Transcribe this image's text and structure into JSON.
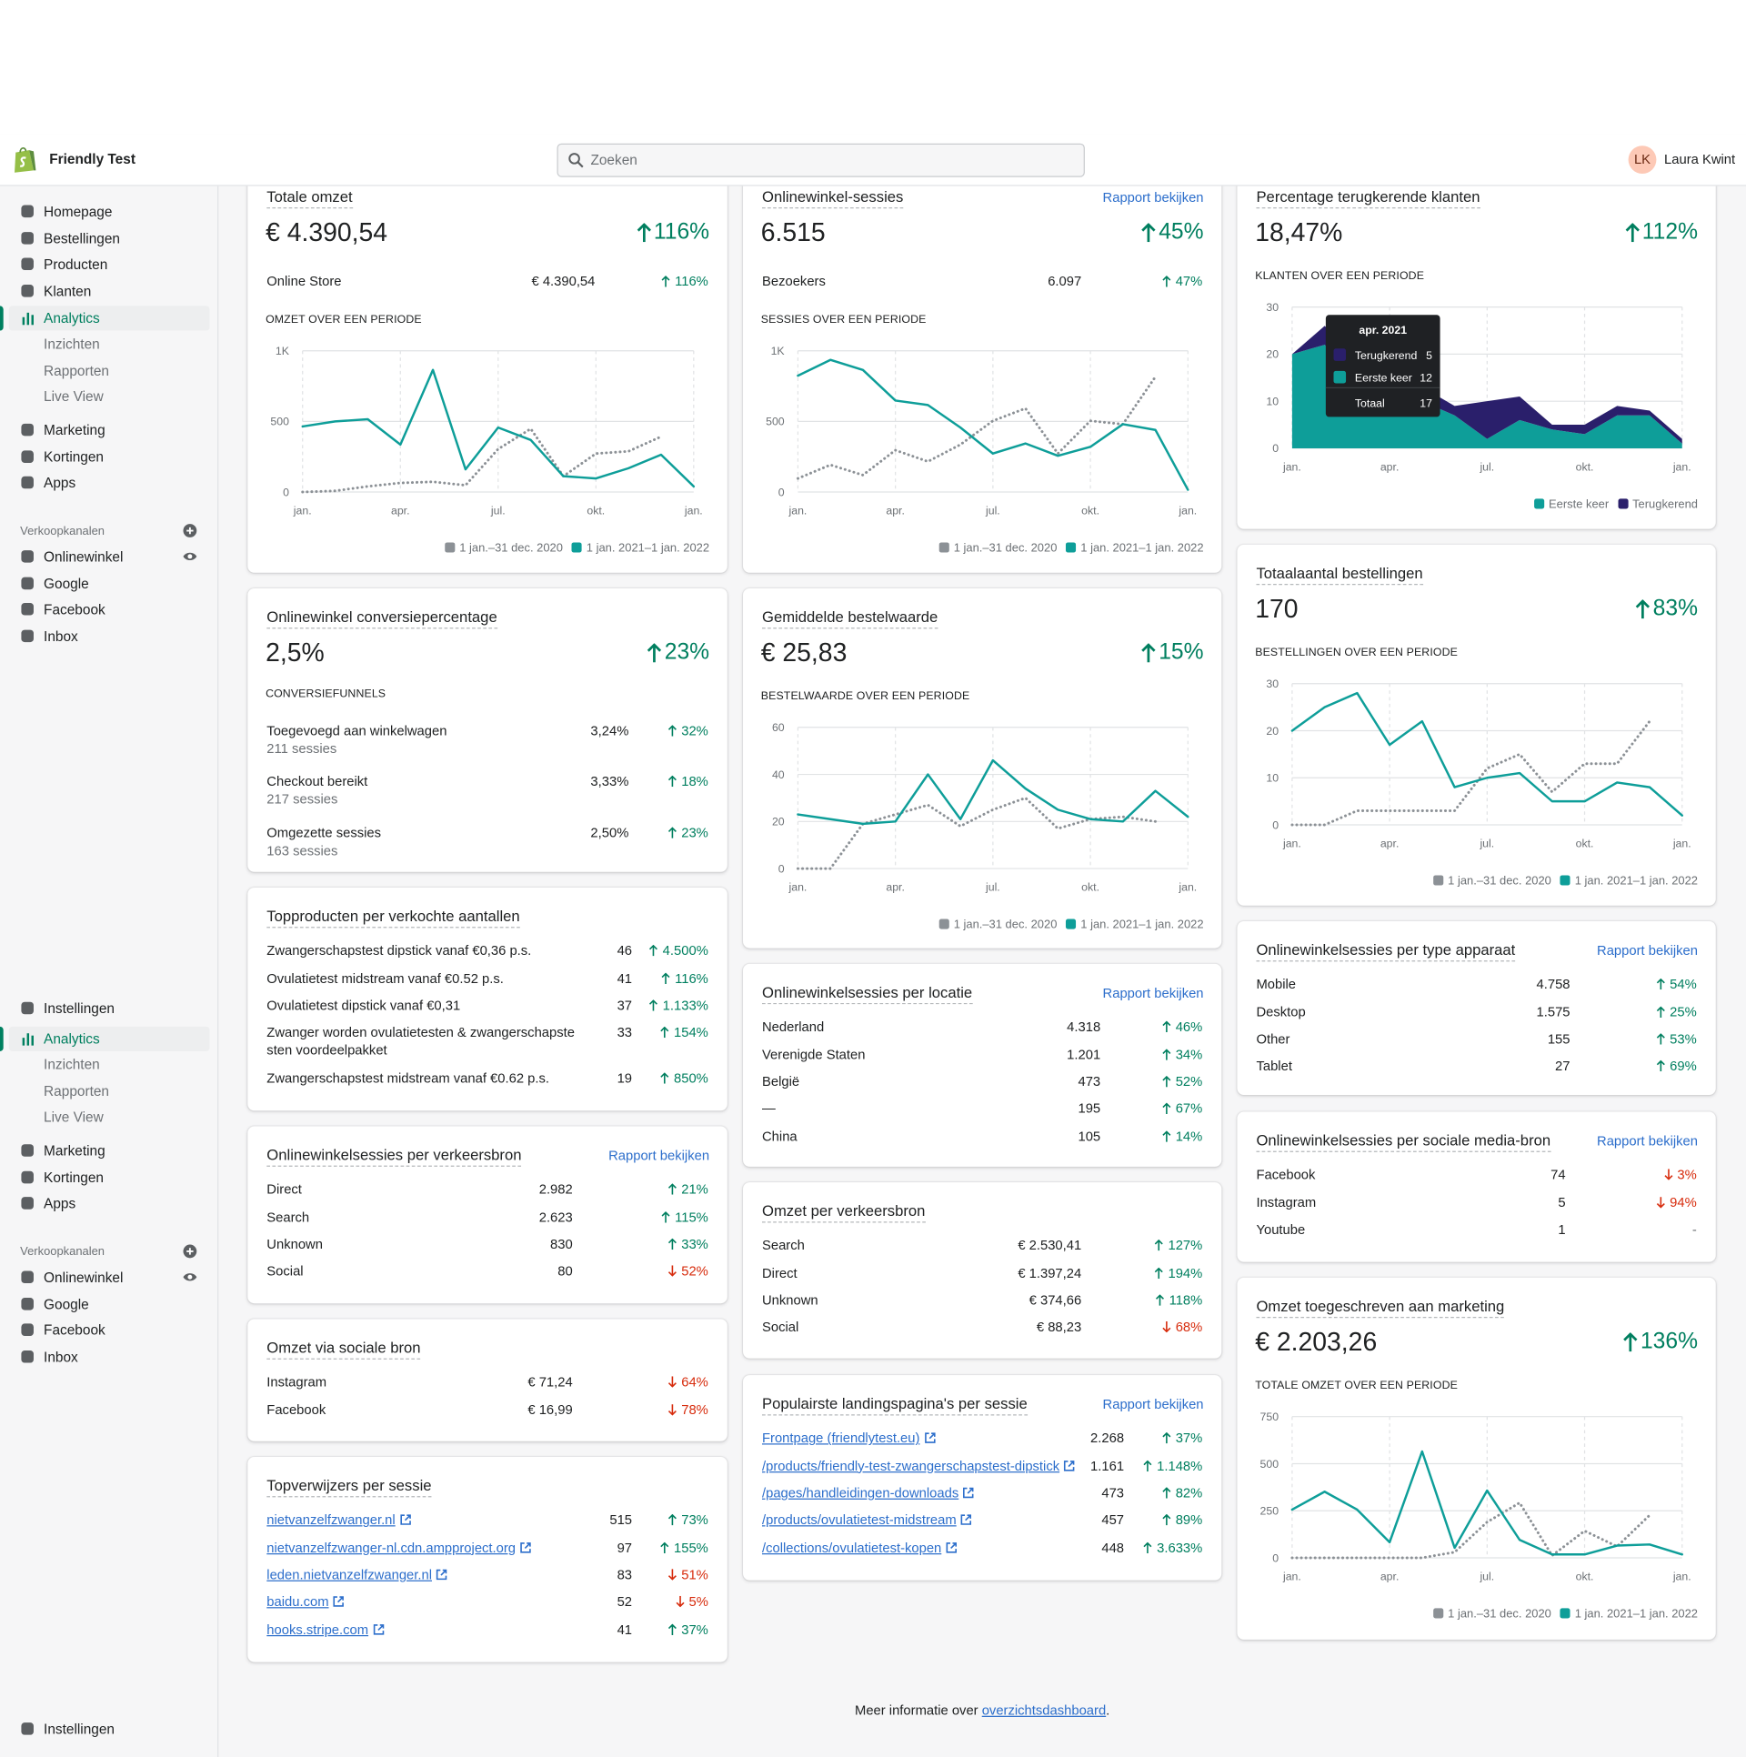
{
  "header": {
    "store": "Friendly Test",
    "search": "Zoeken",
    "initials": "LK",
    "user": "Laura Kwint"
  },
  "sidebar": {
    "items": [
      "Homepage",
      "Bestellingen",
      "Producten",
      "Klanten",
      "Analytics",
      "Inzichten",
      "Rapporten",
      "Live View",
      "Marketing",
      "Kortingen",
      "Apps",
      "Verkoopkanalen",
      "Onlinewinkel",
      "Google",
      "Facebook",
      "Inbox",
      "Instellingen",
      "Analytics",
      "Inzichten",
      "Rapporten",
      "Live View",
      "Marketing",
      "Kortingen",
      "Apps",
      "Verkoopkanalen",
      "Onlinewinkel",
      "Google",
      "Facebook",
      "Inbox",
      "Instellingen"
    ]
  },
  "cards": [
    {
      "title": "Totale omzet",
      "value": "€ 4.390,54",
      "change": "116%",
      "trend": "up",
      "breakdown": {
        "label": "Online Store",
        "value": "€ 4.390,54",
        "change": "116%",
        "trend": "up"
      },
      "chart": {
        "type": "line",
        "title": "OMZET OVER EEN PERIODE",
        "categories": [
          "jan.",
          null,
          null,
          "apr.",
          null,
          null,
          "jul.",
          null,
          null,
          "okt.",
          null,
          null,
          "jan."
        ],
        "ylim": [
          0,
          1000
        ],
        "yticks": [
          0,
          500,
          {
            "value": 1000,
            "label": "1K"
          }
        ],
        "series": [
          {
            "name": "1 jan.–31 dec. 2020",
            "color": "#8c9196",
            "dashed": true,
            "values": [
              0,
              8,
              40,
              64,
              72,
              48,
              304,
              448,
              112,
              272,
              288,
              392,
              null
            ]
          },
          {
            "name": "1 jan. 2021–1 jan. 2022",
            "color": "#0e9e99",
            "values": [
              464,
              500,
              515,
              336,
              864,
              160,
              456,
              368,
              112,
              96,
              168,
              264,
              40
            ]
          }
        ]
      }
    },
    {
      "title": "Onlinewinkel conversiepercentage",
      "value": "2,5%",
      "change": "23%",
      "trend": "up",
      "section_label": "CONVERSIEFUNNELS",
      "funnel": [
        {
          "label": "Toegevoegd aan winkelwagen",
          "sub": "211 sessies",
          "value": "3,24%",
          "change": "32%",
          "trend": "up"
        },
        {
          "label": "Checkout bereikt",
          "sub": "217 sessies",
          "value": "3,33%",
          "change": "18%",
          "trend": "up"
        },
        {
          "label": "Omgezette sessies",
          "sub": "163 sessies",
          "value": "2,50%",
          "change": "23%",
          "trend": "up"
        }
      ]
    },
    {
      "title": "Topproducten per verkochte aantallen",
      "rows": [
        {
          "label": "Zwangerschapstest dipstick vanaf €0,36 p.s.",
          "value": "46",
          "change": "4.500%",
          "trend": "up"
        },
        {
          "label": "Ovulatietest midstream vanaf €0.52 p.s.",
          "value": "41",
          "change": "116%",
          "trend": "up"
        },
        {
          "label": "Ovulatietest dipstick vanaf €0,31",
          "value": "37",
          "change": "1.133%",
          "trend": "up"
        },
        {
          "label": "Zwanger worden ovulatietesten & zwangerschapstesten voordeelpakket",
          "value": "33",
          "change": "154%",
          "trend": "up"
        },
        {
          "label": "Zwangerschapstest midstream vanaf €0.62 p.s.",
          "value": "19",
          "change": "850%",
          "trend": "up"
        }
      ]
    },
    {
      "title": "Onlinewinkelsessies per verkeersbron",
      "link": "Rapport bekijken",
      "rows": [
        {
          "label": "Direct",
          "value": "2.982",
          "change": "21%",
          "trend": "up"
        },
        {
          "label": "Search",
          "value": "2.623",
          "change": "115%",
          "trend": "up"
        },
        {
          "label": "Unknown",
          "value": "830",
          "change": "33%",
          "trend": "up"
        },
        {
          "label": "Social",
          "value": "80",
          "change": "52%",
          "trend": "down"
        }
      ]
    },
    {
      "title": "Omzet via sociale bron",
      "rows": [
        {
          "label": "Instagram",
          "value": "€ 71,24",
          "change": "64%",
          "trend": "down"
        },
        {
          "label": "Facebook",
          "value": "€ 16,99",
          "change": "78%",
          "trend": "down"
        }
      ]
    },
    {
      "title": "Topverwijzers per sessie",
      "rows": [
        {
          "label": "nietvanzelfzwanger.nl",
          "value": "515",
          "change": "73%",
          "trend": "up"
        },
        {
          "label": "nietvanzelfzwanger-nl.cdn.ampproject.org",
          "value": "97",
          "change": "155%",
          "trend": "up"
        },
        {
          "label": "leden.nietvanzelfzwanger.nl",
          "value": "83",
          "change": "51%",
          "trend": "down"
        },
        {
          "label": "baidu.com",
          "value": "52",
          "change": "5%",
          "trend": "down"
        },
        {
          "label": "hooks.stripe.com",
          "value": "41",
          "change": "37%",
          "trend": "up"
        }
      ]
    },
    {
      "title": "Onlinewinkel-sessies",
      "link": "Rapport bekijken",
      "value": "6.515",
      "change": "45%",
      "trend": "up",
      "breakdown": {
        "label": "Bezoekers",
        "value": "6.097",
        "change": "47%",
        "trend": "up"
      },
      "chart": {
        "type": "line",
        "title": "SESSIES OVER EEN PERIODE",
        "categories": [
          "jan.",
          null,
          null,
          "apr.",
          null,
          null,
          "jul.",
          null,
          null,
          "okt.",
          null,
          null,
          "jan."
        ],
        "ylim": [
          0,
          1000
        ],
        "yticks": [
          0,
          500,
          {
            "value": 1000,
            "label": "1K"
          }
        ],
        "series": [
          {
            "name": "1 jan.–31 dec. 2020",
            "color": "#8c9196",
            "dashed": true,
            "values": [
              96,
              192,
              120,
              296,
              216,
              336,
              504,
              592,
              272,
              504,
              480,
              816,
              null
            ]
          },
          {
            "name": "1 jan. 2021–1 jan. 2022",
            "color": "#0e9e99",
            "values": [
              824,
              936,
              864,
              648,
              616,
              456,
              272,
              344,
              256,
              320,
              480,
              440,
              16
            ]
          }
        ]
      }
    },
    {
      "title": "Gemiddelde bestelwaarde",
      "value": "€ 25,83",
      "change": "15%",
      "trend": "up",
      "chart": {
        "type": "line",
        "title": "BESTELWAARDE OVER EEN PERIODE",
        "categories": [
          "jan.",
          null,
          null,
          "apr.",
          null,
          null,
          "jul.",
          null,
          null,
          "okt.",
          null,
          null,
          "jan."
        ],
        "ylim": [
          0,
          60
        ],
        "yticks": [
          0,
          20,
          40,
          60
        ],
        "series": [
          {
            "name": "1 jan.–31 dec. 2020",
            "color": "#8c9196",
            "dashed": true,
            "values": [
              0,
              0,
              19,
              23,
              27,
              18,
              25,
              30,
              17,
              21,
              22,
              20,
              null
            ]
          },
          {
            "name": "1 jan. 2021–1 jan. 2022",
            "color": "#0e9e99",
            "values": [
              23,
              21,
              19,
              20,
              40,
              21,
              46,
              34,
              25,
              21,
              20,
              33,
              22
            ]
          }
        ]
      }
    },
    {
      "title": "Onlinewinkelsessies per locatie",
      "link": "Rapport bekijken",
      "rows": [
        {
          "label": "Nederland",
          "value": "4.318",
          "change": "46%",
          "trend": "up"
        },
        {
          "label": "Verenigde Staten",
          "value": "1.201",
          "change": "34%",
          "trend": "up"
        },
        {
          "label": "België",
          "value": "473",
          "change": "52%",
          "trend": "up"
        },
        {
          "label": "—",
          "value": "195",
          "change": "67%",
          "trend": "up"
        },
        {
          "label": "China",
          "value": "105",
          "change": "14%",
          "trend": "up"
        }
      ]
    },
    {
      "title": "Omzet per verkeersbron",
      "rows": [
        {
          "label": "Search",
          "value": "€ 2.530,41",
          "change": "127%",
          "trend": "up"
        },
        {
          "label": "Direct",
          "value": "€ 1.397,24",
          "change": "194%",
          "trend": "up"
        },
        {
          "label": "Unknown",
          "value": "€ 374,66",
          "change": "118%",
          "trend": "up"
        },
        {
          "label": "Social",
          "value": "€ 88,23",
          "change": "68%",
          "trend": "down"
        }
      ]
    },
    {
      "title": "Populairste landingspagina's per sessie",
      "link": "Rapport bekijken",
      "rows": [
        {
          "label": "Frontpage (friendlytest.eu)",
          "value": "2.268",
          "change": "37%",
          "trend": "up"
        },
        {
          "label": "/products/friendly-test-zwangerschapstest-dipstick",
          "value": "1.161",
          "change": "1.148%",
          "trend": "up"
        },
        {
          "label": "/pages/handleidingen-downloads",
          "value": "473",
          "change": "82%",
          "trend": "up"
        },
        {
          "label": "/products/ovulatietest-midstream",
          "value": "457",
          "change": "89%",
          "trend": "up"
        },
        {
          "label": "/collections/ovulatietest-kopen",
          "value": "448",
          "change": "3.633%",
          "trend": "up"
        }
      ]
    },
    {
      "title": "Percentage terugkerende klanten",
      "value": "18,47%",
      "change": "112%",
      "trend": "up",
      "chart": {
        "type": "stacked-area",
        "title": "KLANTEN OVER EEN PERIODE",
        "categories": [
          "jan.",
          null,
          null,
          "apr.",
          null,
          null,
          "jul.",
          null,
          null,
          "okt.",
          null,
          null,
          "jan."
        ],
        "ylim": [
          0,
          30
        ],
        "yticks": [
          0,
          10,
          20,
          30
        ],
        "series": [
          {
            "name": "Eerste keer",
            "color": "#0e9e99",
            "values": [
              20,
              22,
              16,
              12,
              10,
              7,
              2,
              6,
              4,
              3,
              7,
              7,
              1
            ]
          },
          {
            "name": "Terugkerend",
            "color": "#2a1f6b",
            "values": [
              0,
              4,
              4,
              5,
              3,
              2,
              8,
              5,
              1,
              2,
              2,
              1,
              1
            ]
          }
        ],
        "tooltip": {
          "title": "apr. 2021",
          "rows": [
            {
              "label": "Terugkerend",
              "value": 5,
              "color": "#2a1f6b"
            },
            {
              "label": "Eerste keer",
              "value": 12,
              "color": "#0e9e99"
            }
          ],
          "total_label": "Totaal",
          "total": 17
        }
      }
    },
    {
      "title": "Totaalaantal bestellingen",
      "value": "170",
      "change": "83%",
      "trend": "up",
      "chart": {
        "type": "line",
        "title": "BESTELLINGEN OVER EEN PERIODE",
        "categories": [
          "jan.",
          null,
          null,
          "apr.",
          null,
          null,
          "jul.",
          null,
          null,
          "okt.",
          null,
          null,
          "jan."
        ],
        "ylim": [
          0,
          30
        ],
        "yticks": [
          0,
          10,
          20,
          30
        ],
        "series": [
          {
            "name": "1 jan.–31 dec. 2020",
            "color": "#8c9196",
            "dashed": true,
            "values": [
              0,
              0,
              3,
              3,
              3,
              3,
              12,
              15,
              7,
              13,
              13,
              22,
              null
            ]
          },
          {
            "name": "1 jan. 2021–1 jan. 2022",
            "color": "#0e9e99",
            "values": [
              20,
              25,
              28,
              17,
              22,
              8,
              10,
              11,
              5,
              5,
              9,
              8,
              2
            ]
          }
        ]
      }
    },
    {
      "title": "Onlinewinkelsessies per type apparaat",
      "link": "Rapport bekijken",
      "rows": [
        {
          "label": "Mobile",
          "value": "4.758",
          "change": "54%",
          "trend": "up"
        },
        {
          "label": "Desktop",
          "value": "1.575",
          "change": "25%",
          "trend": "up"
        },
        {
          "label": "Other",
          "value": "155",
          "change": "53%",
          "trend": "up"
        },
        {
          "label": "Tablet",
          "value": "27",
          "change": "69%",
          "trend": "up"
        }
      ]
    },
    {
      "title": "Onlinewinkelsessies per sociale media-bron",
      "link": "Rapport bekijken",
      "rows": [
        {
          "label": "Facebook",
          "value": "74",
          "change": "3%",
          "trend": "down"
        },
        {
          "label": "Instagram",
          "value": "5",
          "change": "94%",
          "trend": "down"
        },
        {
          "label": "Youtube",
          "value": "1",
          "change": "-"
        }
      ]
    },
    {
      "title": "Omzet toegeschreven aan marketing",
      "value": "€ 2.203,26",
      "change": "136%",
      "trend": "up",
      "chart": {
        "type": "line",
        "title": "TOTALE OMZET OVER EEN PERIODE",
        "categories": [
          "jan.",
          null,
          null,
          "apr.",
          null,
          null,
          "jul.",
          null,
          null,
          "okt.",
          null,
          null,
          "jan."
        ],
        "ylim": [
          0,
          750
        ],
        "yticks": [
          0,
          250,
          500,
          750
        ],
        "series": [
          {
            "name": "1 jan.–31 dec. 2020",
            "color": "#8c9196",
            "dashed": true,
            "values": [
              0,
              0,
              0,
              0,
              0,
              30,
              190,
              292,
              12,
              143,
              60,
              226,
              null
            ]
          },
          {
            "name": "1 jan. 2021–1 jan. 2022",
            "color": "#0e9e99",
            "values": [
              256,
              351,
              256,
              83,
              565,
              53,
              357,
              95,
              18,
              18,
              65,
              71,
              18
            ]
          }
        ]
      }
    }
  ],
  "footer": {
    "text": "Meer informatie over ",
    "link": "overzichtsdashboard",
    "end": "."
  }
}
